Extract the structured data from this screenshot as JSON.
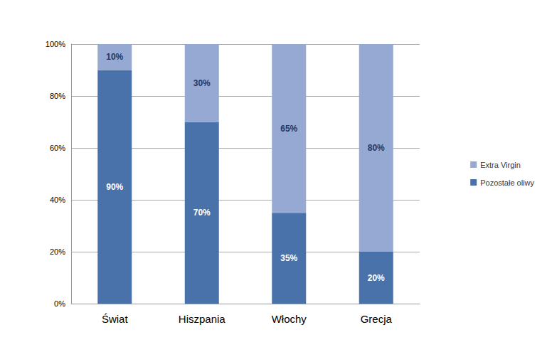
{
  "chart_data": {
    "type": "bar",
    "stacked": true,
    "categories": [
      "Świat",
      "Hiszpania",
      "Włochy",
      "Grecja"
    ],
    "series": [
      {
        "name": "Pozostałe oliwy",
        "color": "#4a72aa",
        "values": [
          90,
          70,
          35,
          20
        ],
        "value_labels": [
          "90%",
          "70%",
          "35%",
          "20%"
        ]
      },
      {
        "name": "Extra Virgin",
        "color": "#95a9d3",
        "values": [
          10,
          30,
          65,
          80
        ],
        "value_labels": [
          "10%",
          "30%",
          "65%",
          "80%"
        ]
      }
    ],
    "ylim": [
      0,
      100
    ],
    "yticks": [
      {
        "value": 0,
        "label": "0%"
      },
      {
        "value": 20,
        "label": "20%"
      },
      {
        "value": 40,
        "label": "40%"
      },
      {
        "value": 60,
        "label": "60%"
      },
      {
        "value": 80,
        "label": "80%"
      },
      {
        "value": 100,
        "label": "100%"
      }
    ],
    "grid": true,
    "legend": "right",
    "data_labels": true
  }
}
